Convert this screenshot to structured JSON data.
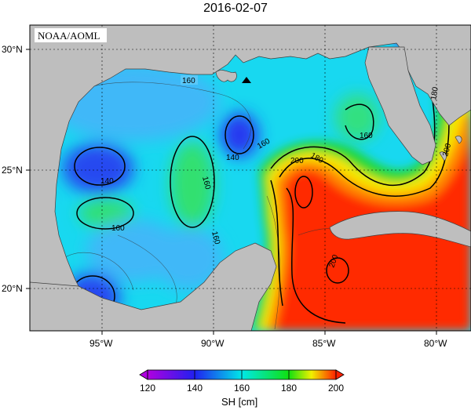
{
  "title": "2016-02-07",
  "credit": "NOAA/AOML",
  "lon_ticks": [
    "95°W",
    "90°W",
    "85°W",
    "80°W"
  ],
  "lat_ticks": [
    "30°N",
    "25°N",
    "20°N"
  ],
  "contour_labels": {
    "c160_nw": "160",
    "c140_w": "140",
    "c160_w": "160",
    "c140_c": "140",
    "c160_c": "160",
    "c160_cs": "160",
    "c160_e": "160",
    "c160_fl": "160",
    "c180_ls": "180",
    "c200_ls": "200",
    "c180_fl": "180",
    "c200_carib": "200",
    "c200_yuc": "200"
  },
  "colorbar": {
    "ticks": [
      "120",
      "140",
      "160",
      "180",
      "200"
    ],
    "label": "SH [cm]",
    "min": 120,
    "max": 200
  },
  "colors": {
    "land": "#bebebe",
    "c120": "#b000e0",
    "c140": "#2020f0",
    "c160": "#00e8e8",
    "c180": "#10e010",
    "c190": "#f0f000",
    "c200": "#ff2000"
  }
}
